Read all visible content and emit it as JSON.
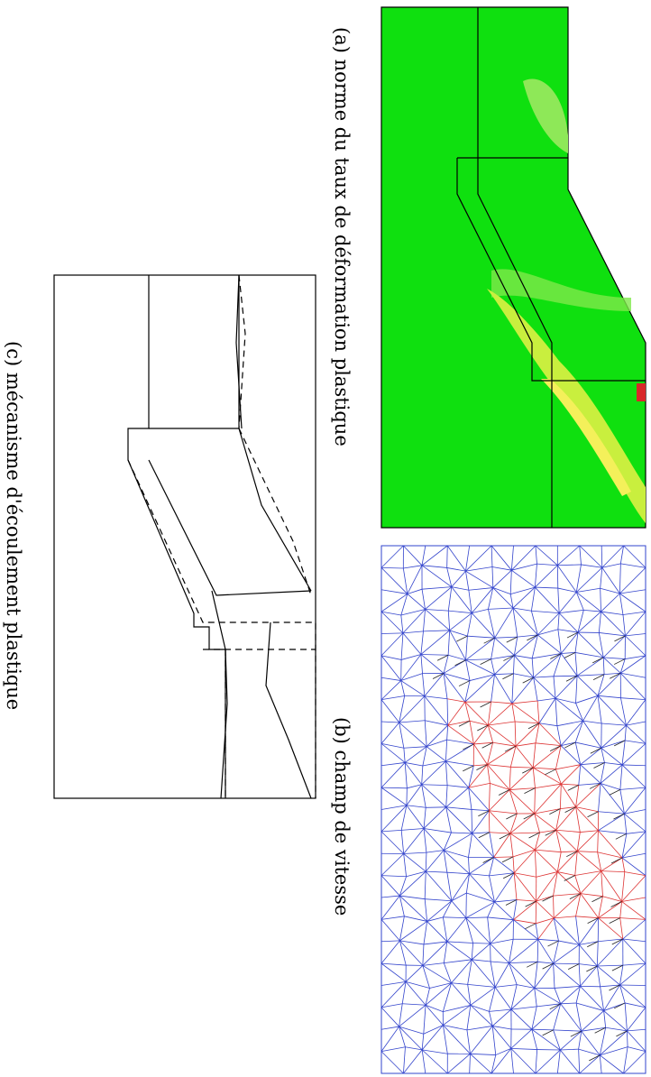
{
  "panels": [
    {
      "caption": "(a) norme du taux de déformation plastique"
    },
    {
      "caption": "(b) champ de vitesse"
    },
    {
      "caption": "(c) mécanisme d'écoulement plastique"
    }
  ]
}
